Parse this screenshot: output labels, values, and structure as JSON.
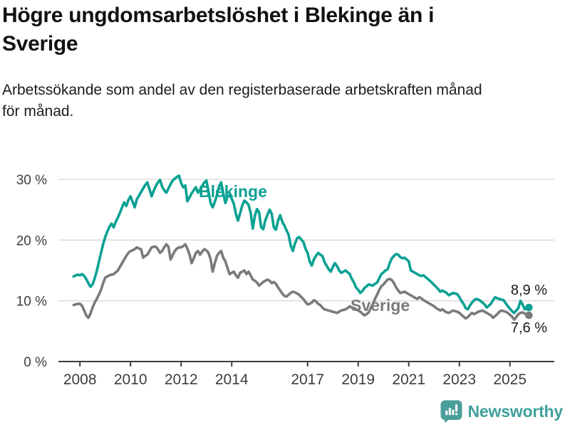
{
  "header": {
    "title": "Högre ungdomsarbetslöshet i Blekinge än i\nSverige",
    "subtitle": "Arbetssökande som andel av den registerbaserade arbetskraften månad\nför månad."
  },
  "footer": {
    "brand": "Newsworthy",
    "logo_icon": "bar-chart-speech-bubble",
    "brand_color": "#3fa09b",
    "icon_color": "#4a9e9a"
  },
  "chart_data": {
    "type": "line",
    "title": "Högre ungdomsarbetslöshet i Blekinge än i Sverige",
    "subtitle": "Arbetssökande som andel av den registerbaserade arbetskraften månad för månad.",
    "x_unit": "month",
    "x_start": "2007-10",
    "x_end": "2025-10",
    "x_ticks": [
      2008,
      2010,
      2012,
      2014,
      2017,
      2019,
      2021,
      2023,
      2025
    ],
    "y_ticks": [
      {
        "value": 0,
        "label": "0 %"
      },
      {
        "value": 10,
        "label": "10 %"
      },
      {
        "value": 20,
        "label": "20 %"
      },
      {
        "value": 30,
        "label": "30 %"
      }
    ],
    "ylim": [
      0,
      33
    ],
    "grid": "horizontal",
    "colors": {
      "axis": "#3d3d3d",
      "gridline": "#d9d9d9",
      "end_label_text": "#1a1a1a"
    },
    "series": [
      {
        "name": "Sverige",
        "color": "#7a7a7a",
        "end_label": "7,6 %",
        "end_value": 7.6,
        "values": [
          9.3,
          9.4,
          9.5,
          9.5,
          9.2,
          8.4,
          7.6,
          7.2,
          7.9,
          8.9,
          9.7,
          10.3,
          11.0,
          11.8,
          12.9,
          13.8,
          14.0,
          14.2,
          14.3,
          14.4,
          14.7,
          15.0,
          15.6,
          16.2,
          16.8,
          17.4,
          17.9,
          18.2,
          18.3,
          18.5,
          18.8,
          18.6,
          18.5,
          17.1,
          17.4,
          17.6,
          18.2,
          18.8,
          18.9,
          18.9,
          18.5,
          17.9,
          18.2,
          18.8,
          19.3,
          18.9,
          16.8,
          17.5,
          18.2,
          18.6,
          18.8,
          18.8,
          19.0,
          19.3,
          18.6,
          17.6,
          16.2,
          17.0,
          17.9,
          18.2,
          17.6,
          18.1,
          18.5,
          18.3,
          17.9,
          16.8,
          14.8,
          16.2,
          17.4,
          17.9,
          18.2,
          17.1,
          16.5,
          15.4,
          14.4,
          14.6,
          14.8,
          14.2,
          13.8,
          14.6,
          14.8,
          15.0,
          14.4,
          14.8,
          14.2,
          13.5,
          13.3,
          13.0,
          12.5,
          12.8,
          13.1,
          13.3,
          13.5,
          13.3,
          12.9,
          13.1,
          12.8,
          12.2,
          11.7,
          11.2,
          10.8,
          10.7,
          11.0,
          11.3,
          11.5,
          11.4,
          11.2,
          11.0,
          10.6,
          10.3,
          9.8,
          9.4,
          9.5,
          9.7,
          10.1,
          9.9,
          9.5,
          9.3,
          8.9,
          8.6,
          8.5,
          8.4,
          8.3,
          8.2,
          8.1,
          8.0,
          8.2,
          8.4,
          8.5,
          8.6,
          8.8,
          9.1,
          8.9,
          8.8,
          8.6,
          8.4,
          8.2,
          7.9,
          7.6,
          7.8,
          8.1,
          8.8,
          9.5,
          10.3,
          11.0,
          11.8,
          12.4,
          12.7,
          13.1,
          13.5,
          13.6,
          13.4,
          12.9,
          12.2,
          11.7,
          11.3,
          11.4,
          11.5,
          11.3,
          11.1,
          10.9,
          10.7,
          10.5,
          10.3,
          10.6,
          10.4,
          10.1,
          9.9,
          9.7,
          9.5,
          9.3,
          9.1,
          8.8,
          8.6,
          8.4,
          8.6,
          8.3,
          8.1,
          8.0,
          8.2,
          8.4,
          8.3,
          8.2,
          8.0,
          7.7,
          7.4,
          7.1,
          7.3,
          7.7,
          8.0,
          7.8,
          8.0,
          8.2,
          8.3,
          8.4,
          8.2,
          8.0,
          7.8,
          7.6,
          7.2,
          7.5,
          7.8,
          8.2,
          8.4,
          8.3,
          8.2,
          8.0,
          7.7,
          7.4,
          6.9,
          7.3,
          7.8,
          8.0,
          8.1,
          7.9,
          7.7,
          7.6
        ]
      },
      {
        "name": "Blekinge",
        "color": "#0ba193",
        "end_label": "8,9 %",
        "end_value": 8.9,
        "values": [
          14.0,
          14.2,
          14.3,
          14.2,
          14.4,
          14.1,
          13.6,
          12.9,
          12.3,
          12.7,
          13.7,
          14.9,
          16.4,
          17.9,
          19.3,
          20.5,
          21.4,
          22.2,
          22.7,
          22.1,
          23.0,
          23.7,
          24.5,
          25.4,
          26.2,
          25.6,
          26.6,
          27.2,
          26.3,
          25.4,
          26.7,
          27.3,
          27.9,
          28.5,
          29.1,
          29.5,
          28.4,
          27.2,
          28.1,
          28.9,
          29.5,
          29.9,
          28.8,
          28.2,
          27.8,
          28.5,
          29.2,
          29.8,
          30.1,
          30.4,
          30.6,
          29.4,
          28.7,
          29.0,
          26.4,
          27.0,
          27.7,
          28.2,
          28.7,
          27.8,
          28.3,
          28.9,
          29.5,
          29.8,
          28.0,
          26.1,
          25.4,
          26.3,
          27.4,
          28.8,
          29.5,
          27.7,
          26.1,
          27.2,
          27.4,
          26.8,
          26.0,
          24.3,
          23.2,
          24.4,
          25.7,
          26.5,
          26.2,
          25.8,
          24.5,
          21.9,
          24.0,
          25.1,
          24.6,
          22.1,
          21.8,
          23.3,
          24.2,
          25.0,
          24.3,
          22.1,
          21.7,
          23.2,
          24.1,
          23.0,
          22.4,
          21.6,
          20.9,
          19.1,
          18.2,
          19.4,
          20.3,
          20.5,
          20.1,
          19.7,
          18.6,
          17.9,
          16.5,
          15.8,
          16.8,
          17.4,
          17.9,
          17.6,
          17.4,
          16.4,
          15.8,
          15.2,
          14.8,
          15.6,
          16.2,
          15.7,
          15.0,
          14.6,
          14.8,
          15.0,
          14.7,
          14.4,
          13.6,
          13.0,
          12.2,
          11.8,
          11.3,
          11.6,
          12.1,
          12.4,
          12.7,
          12.6,
          12.5,
          12.8,
          13.0,
          13.7,
          14.4,
          14.7,
          15.0,
          15.2,
          16.2,
          17.0,
          17.4,
          17.7,
          17.6,
          17.2,
          17.0,
          17.1,
          16.8,
          16.5,
          15.0,
          14.8,
          14.6,
          14.4,
          14.2,
          14.1,
          14.2,
          13.9,
          13.6,
          13.3,
          13.0,
          12.6,
          12.3,
          11.9,
          11.5,
          11.7,
          11.5,
          11.3,
          10.9,
          11.1,
          11.3,
          11.2,
          11.1,
          10.6,
          10.0,
          9.5,
          8.8,
          8.6,
          9.2,
          9.7,
          10.1,
          10.3,
          10.2,
          10.0,
          9.7,
          9.4,
          8.9,
          9.2,
          9.5,
          10.1,
          10.6,
          10.4,
          10.3,
          10.2,
          10.1,
          9.6,
          9.1,
          8.7,
          8.3,
          8.0,
          8.4,
          8.8,
          10.0,
          9.4,
          8.6,
          8.8,
          8.9
        ]
      }
    ]
  }
}
